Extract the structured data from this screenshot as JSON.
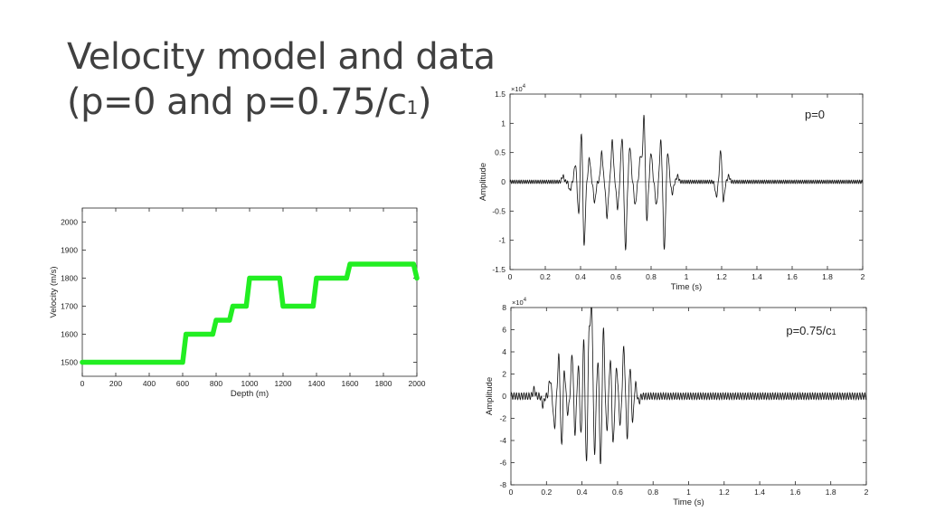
{
  "slide": {
    "title_line1": "Velocity model and data",
    "title_line2_main": "(p=0 and p=0.75/c",
    "title_line2_sub": "1",
    "title_line2_end": ")"
  },
  "chart_data": [
    {
      "id": "velocity",
      "type": "line",
      "title": "",
      "xlabel": "Depth (m)",
      "ylabel": "Velocity (m/s)",
      "xlim": [
        0,
        2000
      ],
      "ylim": [
        1450,
        2050
      ],
      "xticks": [
        0,
        200,
        400,
        600,
        800,
        1000,
        1200,
        1400,
        1600,
        1800,
        2000
      ],
      "yticks": [
        1500,
        1600,
        1700,
        1800,
        1900,
        2000
      ],
      "color": "#22ee22",
      "series": [
        {
          "name": "velocity",
          "x": [
            0,
            600,
            620,
            780,
            800,
            880,
            900,
            980,
            1000,
            1180,
            1200,
            1380,
            1400,
            1580,
            1600,
            1980,
            2000
          ],
          "y": [
            1500,
            1500,
            1600,
            1600,
            1650,
            1650,
            1700,
            1700,
            1800,
            1800,
            1700,
            1700,
            1800,
            1800,
            1850,
            1850,
            1800
          ]
        }
      ]
    },
    {
      "id": "p0",
      "type": "line",
      "title": "",
      "annotation": "p=0",
      "exponent_label": "×10",
      "exponent_power": "4",
      "xlabel": "Time (s)",
      "ylabel": "Amplitude",
      "xlim": [
        0,
        2
      ],
      "ylim": [
        -1.5,
        1.5
      ],
      "xticks": [
        0,
        0.2,
        0.4,
        0.6,
        0.8,
        1,
        1.2,
        1.4,
        1.6,
        1.8,
        2
      ],
      "yticks": [
        -1.5,
        -1,
        -0.5,
        0,
        0.5,
        1,
        1.5
      ],
      "color": "#111111",
      "series": [
        {
          "name": "trace",
          "background_amplitude": 0.03,
          "background_period": 0.012,
          "pulses": [
            {
              "t": 0.3,
              "a": 0.1
            },
            {
              "t": 0.34,
              "a": -0.15
            },
            {
              "t": 0.37,
              "a": 0.3
            },
            {
              "t": 0.39,
              "a": -0.6
            },
            {
              "t": 0.405,
              "a": 0.95
            },
            {
              "t": 0.42,
              "a": -1.15
            },
            {
              "t": 0.45,
              "a": 0.4
            },
            {
              "t": 0.48,
              "a": -0.35
            },
            {
              "t": 0.52,
              "a": 0.5
            },
            {
              "t": 0.55,
              "a": -0.6
            },
            {
              "t": 0.58,
              "a": 0.7
            },
            {
              "t": 0.61,
              "a": -0.45
            },
            {
              "t": 0.635,
              "a": 0.75
            },
            {
              "t": 0.655,
              "a": -1.15
            },
            {
              "t": 0.68,
              "a": 0.6
            },
            {
              "t": 0.71,
              "a": -0.4
            },
            {
              "t": 0.74,
              "a": 0.45
            },
            {
              "t": 0.76,
              "a": 1.15
            },
            {
              "t": 0.775,
              "a": -0.7
            },
            {
              "t": 0.8,
              "a": 0.5
            },
            {
              "t": 0.83,
              "a": -0.4
            },
            {
              "t": 0.855,
              "a": 0.7
            },
            {
              "t": 0.875,
              "a": -1.15
            },
            {
              "t": 0.895,
              "a": 0.5
            },
            {
              "t": 0.92,
              "a": -0.2
            },
            {
              "t": 0.95,
              "a": 0.1
            },
            {
              "t": 1.17,
              "a": -0.25
            },
            {
              "t": 1.195,
              "a": 0.55
            },
            {
              "t": 1.21,
              "a": -0.35
            },
            {
              "t": 1.24,
              "a": 0.1
            }
          ]
        }
      ]
    },
    {
      "id": "p075",
      "type": "line",
      "title": "",
      "annotation_main": "p=0.75/c",
      "annotation_sub": "1",
      "exponent_label": "×10",
      "exponent_power": "4",
      "xlabel": "Time (s)",
      "ylabel": "Amplitude",
      "xlim": [
        0,
        2
      ],
      "ylim": [
        -8,
        8
      ],
      "xticks": [
        0,
        0.2,
        0.4,
        0.6,
        0.8,
        1,
        1.2,
        1.4,
        1.6,
        1.8,
        2
      ],
      "yticks": [
        -8,
        -6,
        -4,
        -2,
        0,
        2,
        4,
        6,
        8
      ],
      "color": "#111111",
      "series": [
        {
          "name": "trace",
          "background_amplitude": 0.3,
          "background_period": 0.014,
          "pulses": [
            {
              "t": 0.13,
              "a": 0.6
            },
            {
              "t": 0.18,
              "a": -0.8
            },
            {
              "t": 0.22,
              "a": 1.5
            },
            {
              "t": 0.245,
              "a": -2.8
            },
            {
              "t": 0.27,
              "a": 3.8
            },
            {
              "t": 0.285,
              "a": -4.9
            },
            {
              "t": 0.3,
              "a": 2.5
            },
            {
              "t": 0.32,
              "a": -1.5
            },
            {
              "t": 0.345,
              "a": 4.0
            },
            {
              "t": 0.36,
              "a": -3.5
            },
            {
              "t": 0.38,
              "a": 2.8
            },
            {
              "t": 0.395,
              "a": -4.0
            },
            {
              "t": 0.41,
              "a": 5.5
            },
            {
              "t": 0.425,
              "a": -6.8
            },
            {
              "t": 0.44,
              "a": 6.0
            },
            {
              "t": 0.455,
              "a": 7.9
            },
            {
              "t": 0.47,
              "a": -5.5
            },
            {
              "t": 0.49,
              "a": 3.5
            },
            {
              "t": 0.505,
              "a": -6.8
            },
            {
              "t": 0.52,
              "a": 6.3
            },
            {
              "t": 0.54,
              "a": -3.0
            },
            {
              "t": 0.56,
              "a": 3.5
            },
            {
              "t": 0.575,
              "a": -4.5
            },
            {
              "t": 0.595,
              "a": 2.5
            },
            {
              "t": 0.615,
              "a": -2.5
            },
            {
              "t": 0.635,
              "a": 4.3
            },
            {
              "t": 0.655,
              "a": -3.8
            },
            {
              "t": 0.67,
              "a": 3.0
            },
            {
              "t": 0.685,
              "a": -2.5
            },
            {
              "t": 0.7,
              "a": 1.2
            },
            {
              "t": 0.72,
              "a": -0.5
            }
          ]
        }
      ]
    }
  ]
}
